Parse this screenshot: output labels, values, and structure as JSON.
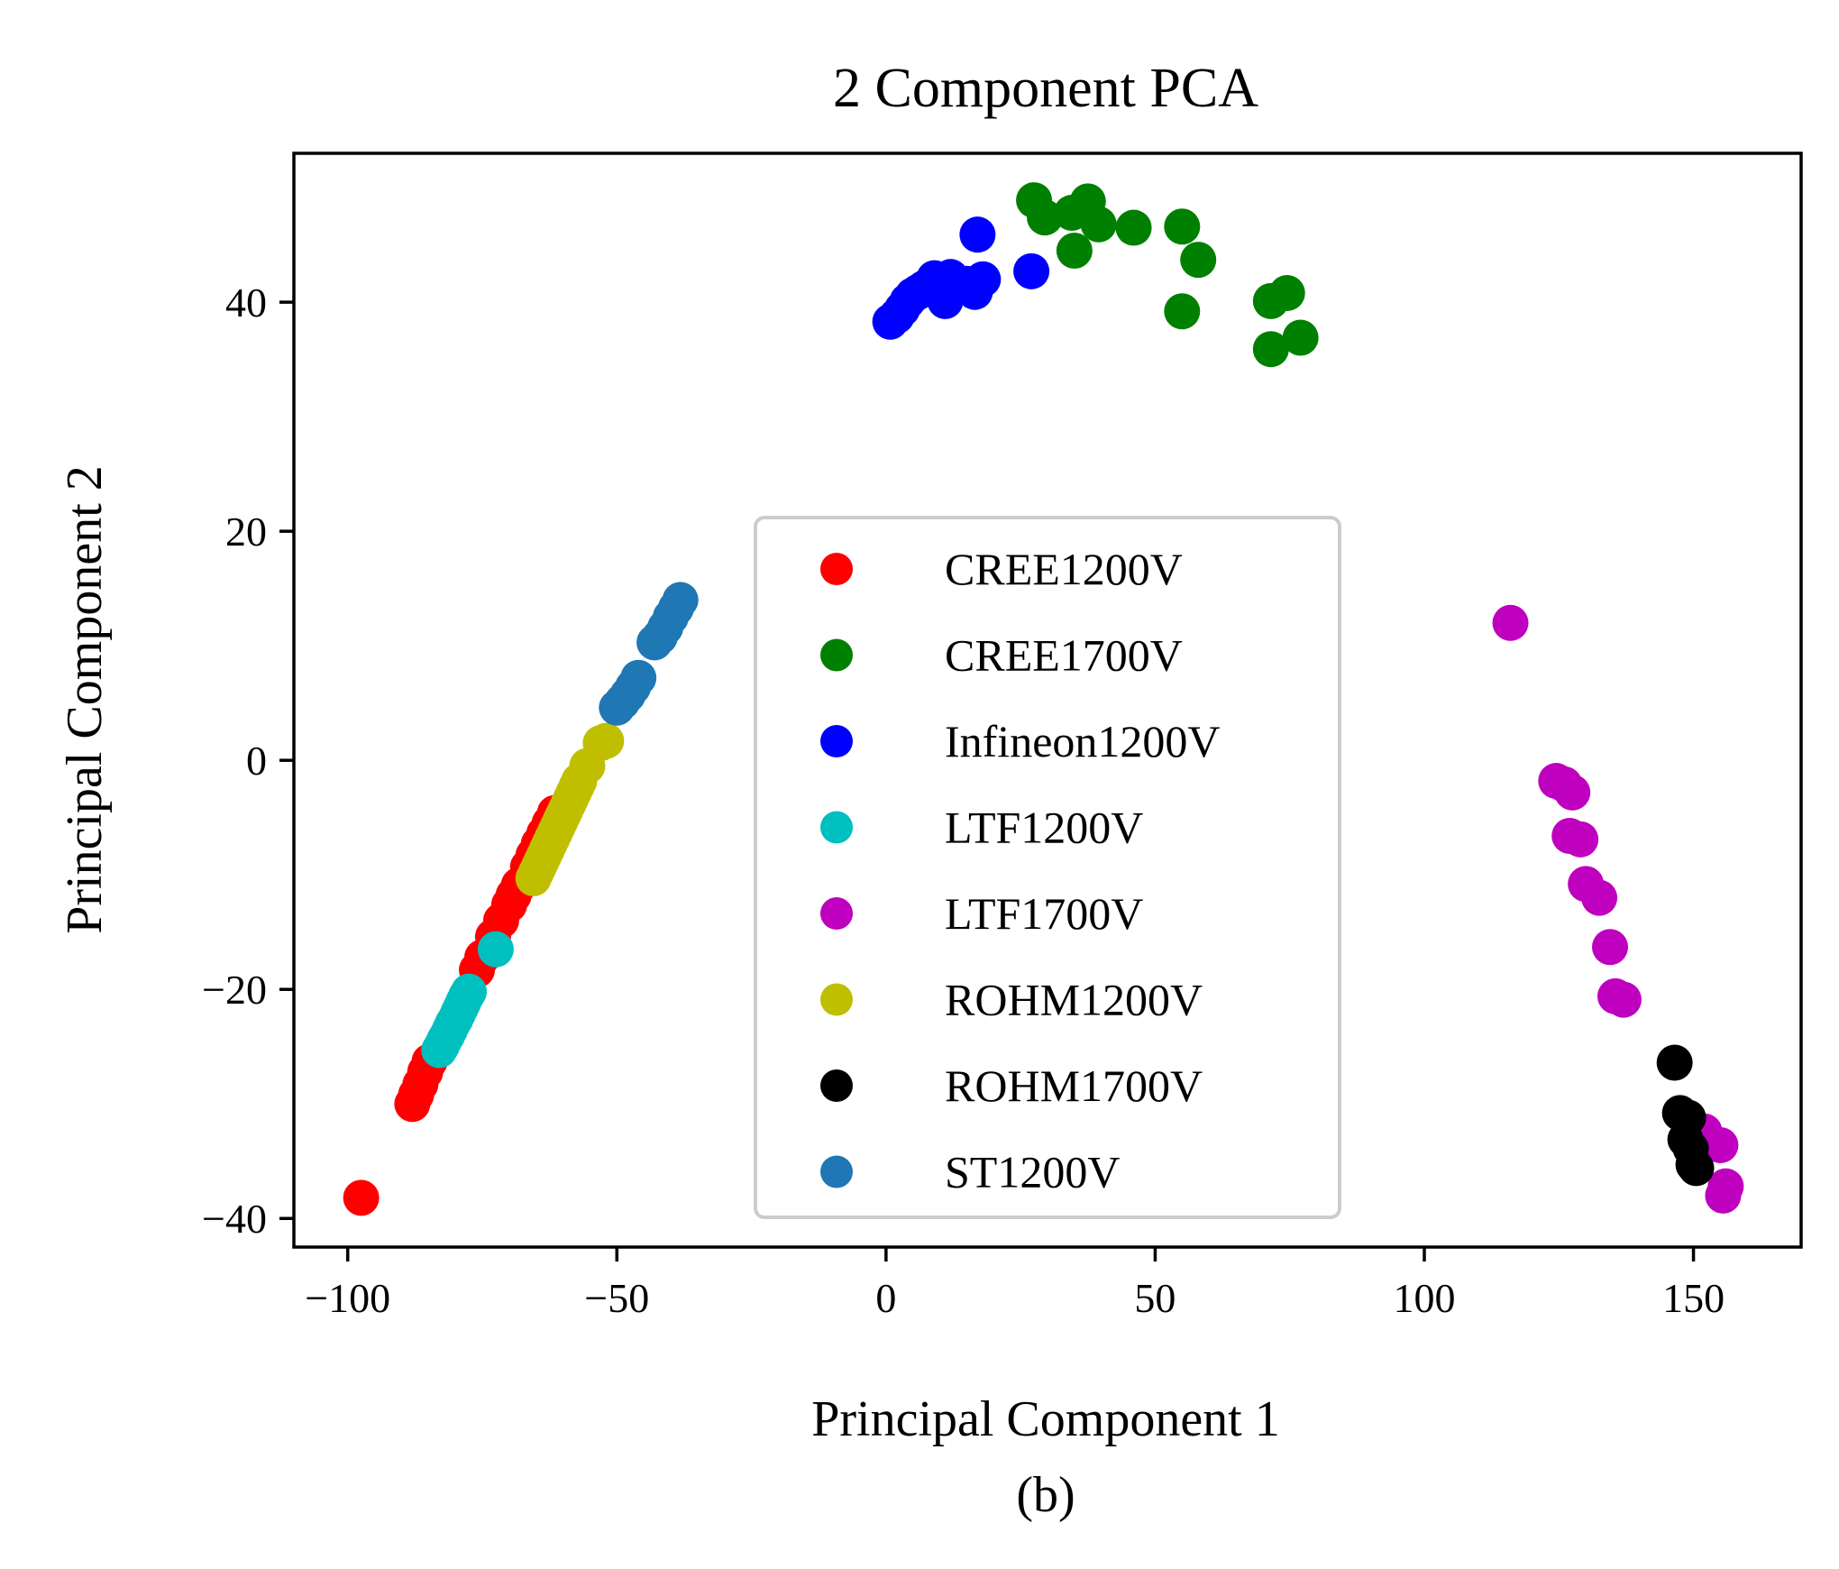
{
  "chart_data": {
    "type": "scatter",
    "title": "2 Component PCA",
    "xlabel": "Principal Component 1",
    "ylabel": "Principal Component 2",
    "caption": "(b)",
    "xlim": [
      -110,
      170
    ],
    "ylim": [
      -42.5,
      53
    ],
    "xticks": [
      -100,
      -50,
      0,
      50,
      100,
      150
    ],
    "yticks": [
      -40,
      -20,
      0,
      20,
      40
    ],
    "xtick_labels": [
      "−100",
      "−50",
      "0",
      "50",
      "100",
      "150"
    ],
    "ytick_labels": [
      "−40",
      "−20",
      "0",
      "20",
      "40"
    ],
    "grid": false,
    "legend_position": "center",
    "series": [
      {
        "name": "CREE1200V",
        "color": "#ff0000",
        "points": [
          [
            -97.5,
            -38.2
          ],
          [
            -88,
            -30
          ],
          [
            -87.3,
            -29.2
          ],
          [
            -86.5,
            -28.3
          ],
          [
            -85.6,
            -27.2
          ],
          [
            -84.8,
            -26.3
          ],
          [
            -76,
            -18.3
          ],
          [
            -75,
            -17.2
          ],
          [
            -73,
            -15.4
          ],
          [
            -71.5,
            -14
          ],
          [
            -70,
            -12.6
          ],
          [
            -69.2,
            -11.8
          ],
          [
            -68.2,
            -10.9
          ],
          [
            -66.5,
            -9.3
          ],
          [
            -65.5,
            -8.3
          ],
          [
            -64.5,
            -7.3
          ],
          [
            -63.5,
            -6.4
          ],
          [
            -62.5,
            -5.5
          ],
          [
            -61.5,
            -4.6
          ]
        ]
      },
      {
        "name": "CREE1700V",
        "color": "#008000",
        "points": [
          [
            27.5,
            48.9
          ],
          [
            29.5,
            47.4
          ],
          [
            34.5,
            47.8
          ],
          [
            37.5,
            48.8
          ],
          [
            39.5,
            46.8
          ],
          [
            46,
            46.5
          ],
          [
            35,
            44.5
          ],
          [
            55,
            46.6
          ],
          [
            58,
            43.7
          ],
          [
            55,
            39.2
          ],
          [
            71.5,
            40.1
          ],
          [
            74.5,
            40.8
          ],
          [
            71.5,
            35.9
          ],
          [
            77,
            36.9
          ]
        ]
      },
      {
        "name": "Infineon1200V",
        "color": "#0000ff",
        "points": [
          [
            0.8,
            38.3
          ],
          [
            2,
            38.8
          ],
          [
            3,
            39.4
          ],
          [
            4,
            40.1
          ],
          [
            5,
            40.6
          ],
          [
            6,
            40.9
          ],
          [
            7,
            41.2
          ],
          [
            8,
            41.5
          ],
          [
            9,
            42.1
          ],
          [
            10,
            41.8
          ],
          [
            11,
            40.1
          ],
          [
            12,
            42.2
          ],
          [
            15,
            41.6
          ],
          [
            16.5,
            40.9
          ],
          [
            18,
            42
          ],
          [
            17,
            45.9
          ],
          [
            27,
            42.7
          ]
        ]
      },
      {
        "name": "LTF1200V",
        "color": "#00bfbf",
        "points": [
          [
            -72.5,
            -16.5
          ],
          [
            -83,
            -25.3
          ],
          [
            -82.5,
            -24.9
          ],
          [
            -82,
            -24.4
          ],
          [
            -81.5,
            -24
          ],
          [
            -81,
            -23.5
          ],
          [
            -80.5,
            -23
          ],
          [
            -80,
            -22.6
          ],
          [
            -79.5,
            -22.1
          ],
          [
            -79,
            -21.6
          ],
          [
            -78.5,
            -21.1
          ],
          [
            -78,
            -20.6
          ],
          [
            -77.5,
            -20.2
          ]
        ]
      },
      {
        "name": "LTF1700V",
        "color": "#bf00bf",
        "points": [
          [
            116,
            12
          ],
          [
            124.5,
            -1.8
          ],
          [
            126,
            -2.1
          ],
          [
            127.5,
            -2.8
          ],
          [
            127,
            -6.6
          ],
          [
            129,
            -6.9
          ],
          [
            130,
            -10.8
          ],
          [
            132.5,
            -12
          ],
          [
            134.5,
            -16.3
          ],
          [
            135.5,
            -20.6
          ],
          [
            137,
            -20.9
          ],
          [
            152,
            -32.4
          ],
          [
            155,
            -33.6
          ],
          [
            156,
            -37.2
          ],
          [
            155.5,
            -38
          ]
        ]
      },
      {
        "name": "ROHM1200V",
        "color": "#bfbf00",
        "points": [
          [
            -65.5,
            -10.3
          ],
          [
            -65,
            -9.8
          ],
          [
            -64.5,
            -9.3
          ],
          [
            -64,
            -8.8
          ],
          [
            -63.5,
            -8.3
          ],
          [
            -63,
            -7.8
          ],
          [
            -62.5,
            -7.3
          ],
          [
            -62,
            -6.8
          ],
          [
            -61.5,
            -6.3
          ],
          [
            -61,
            -5.8
          ],
          [
            -60.5,
            -5.3
          ],
          [
            -60,
            -4.8
          ],
          [
            -59.5,
            -4.3
          ],
          [
            -59,
            -3.8
          ],
          [
            -58.5,
            -3.3
          ],
          [
            -58,
            -2.8
          ],
          [
            -57.5,
            -2.3
          ],
          [
            -57,
            -1.8
          ],
          [
            -55.5,
            -0.5
          ],
          [
            -53,
            1.5
          ],
          [
            -52,
            1.7
          ]
        ]
      },
      {
        "name": "ROHM1700V",
        "color": "#000000",
        "points": [
          [
            146.5,
            -26.4
          ],
          [
            147.5,
            -30.8
          ],
          [
            149,
            -31.2
          ],
          [
            148.5,
            -33.1
          ],
          [
            149.5,
            -33.9
          ],
          [
            150,
            -35.3
          ],
          [
            150.5,
            -35.6
          ]
        ]
      },
      {
        "name": "ST1200V",
        "color": "#1f77b4",
        "points": [
          [
            -38.2,
            14
          ],
          [
            -39,
            13.3
          ],
          [
            -40,
            12.5
          ],
          [
            -41,
            11.6
          ],
          [
            -42,
            10.8
          ],
          [
            -43,
            10.3
          ],
          [
            -46,
            7.2
          ],
          [
            -47,
            6.4
          ],
          [
            -48,
            5.7
          ],
          [
            -49,
            5.1
          ],
          [
            -50,
            4.6
          ]
        ]
      }
    ]
  }
}
